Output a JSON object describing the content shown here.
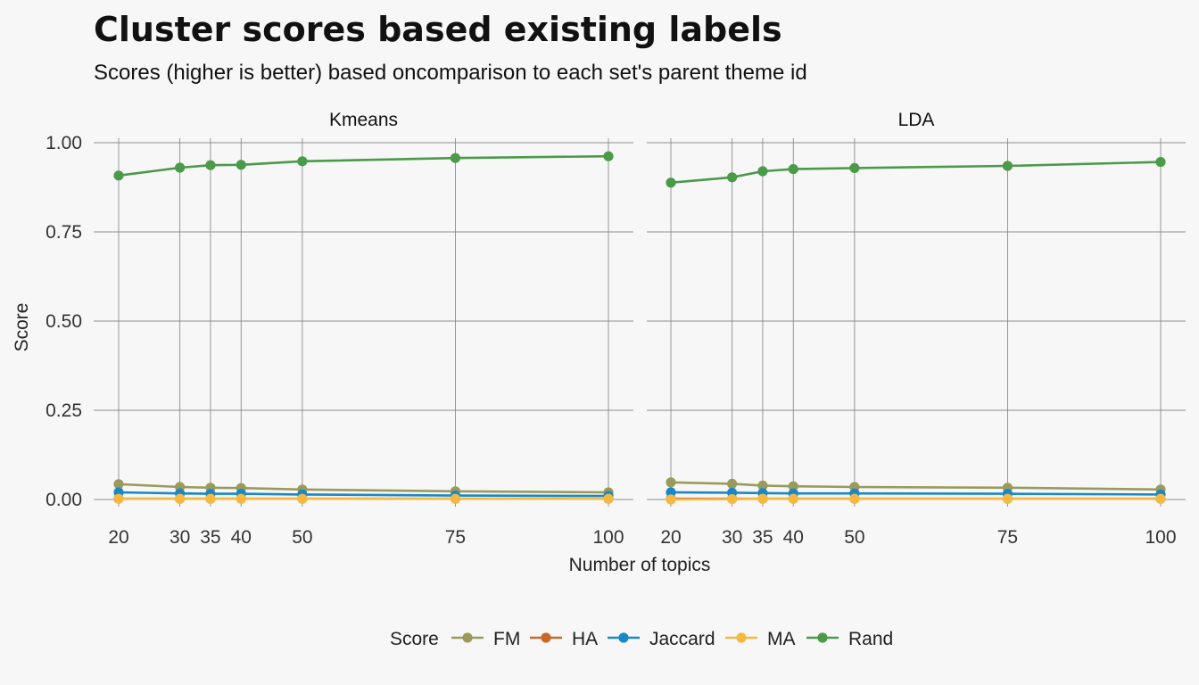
{
  "title": "Cluster scores based existing labels",
  "subtitle": "Scores (higher is better) based oncomparison to each set's parent theme id",
  "chart_data": {
    "type": "line",
    "xlabel": "Number of topics",
    "ylabel": "Score",
    "x": [
      20,
      30,
      35,
      40,
      50,
      75,
      100
    ],
    "x_ticks": [
      "20",
      "30",
      "35",
      "40",
      "50",
      "75",
      "100"
    ],
    "xlim": [
      20,
      100
    ],
    "ylim": [
      0,
      1
    ],
    "y_ticks": [
      "0.00",
      "0.25",
      "0.50",
      "0.75",
      "1.00"
    ],
    "grid": true,
    "legend": {
      "title": "Score",
      "placement": "bottom",
      "entries": [
        "FM",
        "HA",
        "Jaccard",
        "MA",
        "Rand"
      ]
    },
    "colors": {
      "FM": "#9a9a5c",
      "HA": "#c8692a",
      "Jaccard": "#1a88c8",
      "MA": "#f5b942",
      "Rand": "#4a9a4a"
    },
    "panels": [
      {
        "label": "Kmeans",
        "series": [
          {
            "name": "FM",
            "values": [
              0.043,
              0.035,
              0.033,
              0.032,
              0.028,
              0.023,
              0.02
            ]
          },
          {
            "name": "HA",
            "values": [
              0.002,
              0.002,
              0.002,
              0.002,
              0.002,
              0.002,
              0.002
            ]
          },
          {
            "name": "Jaccard",
            "values": [
              0.02,
              0.017,
              0.016,
              0.016,
              0.014,
              0.011,
              0.01
            ]
          },
          {
            "name": "MA",
            "values": [
              0.002,
              0.002,
              0.002,
              0.002,
              0.002,
              0.002,
              0.002
            ]
          },
          {
            "name": "Rand",
            "values": [
              0.908,
              0.93,
              0.937,
              0.938,
              0.948,
              0.957,
              0.962
            ]
          }
        ]
      },
      {
        "label": "LDA",
        "series": [
          {
            "name": "FM",
            "values": [
              0.048,
              0.044,
              0.039,
              0.037,
              0.035,
              0.033,
              0.028
            ]
          },
          {
            "name": "HA",
            "values": [
              0.002,
              0.002,
              0.002,
              0.002,
              0.002,
              0.002,
              0.002
            ]
          },
          {
            "name": "Jaccard",
            "values": [
              0.02,
              0.019,
              0.018,
              0.017,
              0.017,
              0.016,
              0.014
            ]
          },
          {
            "name": "MA",
            "values": [
              0.0,
              0.001,
              0.002,
              0.002,
              0.002,
              0.002,
              0.002
            ]
          },
          {
            "name": "Rand",
            "values": [
              0.888,
              0.903,
              0.92,
              0.926,
              0.929,
              0.935,
              0.946
            ]
          }
        ]
      }
    ]
  }
}
